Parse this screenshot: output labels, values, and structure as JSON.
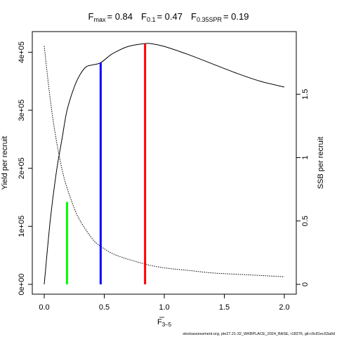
{
  "chart_data": {
    "type": "line",
    "title_parts": {
      "fmax_label": "F",
      "fmax_sub": "max",
      "fmax_value": "= 0.84",
      "f01_label": "F",
      "f01_sub": "0.1",
      "f01_value": "= 0.47",
      "fspr_label": "F",
      "fspr_sub": "0.35SPR",
      "fspr_value": "= 0.19"
    },
    "xlabel": "F",
    "xlabel_sub": "3–5",
    "ylabel_left": "Yield per recruit",
    "ylabel_right": "SSB per recruit",
    "footer": "stockassessment.org, ple27.21-32_WKBPLACE_2024_BASE, r18376, git:c9c81ec53a0d",
    "xlim": [
      0,
      2
    ],
    "ylim_left": [
      0,
      415000
    ],
    "ylim_right": [
      0,
      1.9
    ],
    "x_ticks": [
      0,
      0.5,
      1,
      1.5,
      2
    ],
    "x_tick_labels": [
      "0.0",
      "0.5",
      "1.0",
      "1.5",
      "2.0"
    ],
    "y_left_ticks": [
      0,
      100000,
      200000,
      300000,
      400000
    ],
    "y_left_tick_labels": [
      "0e+00",
      "1e+05",
      "2e+05",
      "3e+05",
      "4e+05"
    ],
    "y_right_ticks": [
      0,
      0.5,
      1,
      1.5
    ],
    "y_right_tick_labels": [
      "0",
      "0.5",
      "1",
      "1.5"
    ],
    "series": [
      {
        "axis": "left",
        "style": "solid",
        "color": "#000000",
        "x": [
          0,
          0.05,
          0.1,
          0.15,
          0.19,
          0.25,
          0.3,
          0.35,
          0.4,
          0.47,
          0.55,
          0.6,
          0.7,
          0.84,
          0.9,
          1.0,
          1.2,
          1.4,
          1.6,
          1.8,
          2.0
        ],
        "y": [
          0,
          110000,
          192000,
          253000,
          300000,
          340000,
          362000,
          375000,
          378000,
          382000,
          395000,
          401000,
          410000,
          415000,
          414500,
          410000,
          396000,
          380000,
          364000,
          350000,
          340000
        ]
      },
      {
        "axis": "right",
        "style": "dotted",
        "color": "#000000",
        "x": [
          0,
          0.05,
          0.1,
          0.15,
          0.19,
          0.25,
          0.3,
          0.4,
          0.47,
          0.6,
          0.84,
          1.0,
          1.2,
          1.4,
          1.6,
          1.8,
          2.0
        ],
        "y": [
          1.88,
          1.46,
          1.14,
          0.9,
          0.76,
          0.6,
          0.5,
          0.36,
          0.3,
          0.23,
          0.16,
          0.13,
          0.11,
          0.09,
          0.08,
          0.07,
          0.06
        ]
      }
    ],
    "reference_lines": [
      {
        "name": "F0.35SPR",
        "x": 0.19,
        "y_top": 142000,
        "color": "#00ff00"
      },
      {
        "name": "F0.1",
        "x": 0.47,
        "y_top": 382000,
        "color": "#0000ff"
      },
      {
        "name": "Fmax",
        "x": 0.84,
        "y_top": 415000,
        "color": "#ff0000"
      }
    ]
  }
}
